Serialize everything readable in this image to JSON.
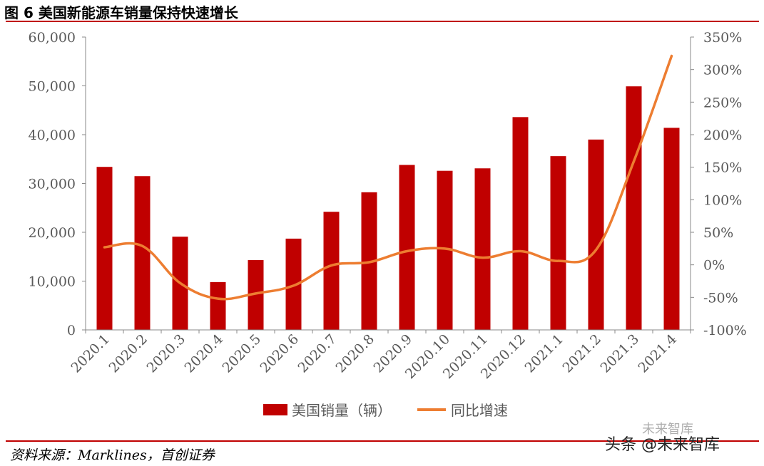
{
  "figure": {
    "title": "图 6 美国新能源车销量保持快速增长",
    "source": "资料来源：Marklines，首创证券",
    "watermark": "头条 @未来智库",
    "watermark_faint": "未来智库"
  },
  "colors": {
    "bar": "#c00000",
    "line": "#ed7d31",
    "rule": "#c00000",
    "axis": "#888888",
    "text": "#595959"
  },
  "chart_data": {
    "type": "bar",
    "categories": [
      "2020.1",
      "2020.2",
      "2020.3",
      "2020.4",
      "2020.5",
      "2020.6",
      "2020.7",
      "2020.8",
      "2020.9",
      "2020.10",
      "2020.11",
      "2020.12",
      "2021.1",
      "2021.2",
      "2021.3",
      "2021.4"
    ],
    "series": [
      {
        "name": "美国销量（辆）",
        "type": "bar",
        "axis": "left",
        "values": [
          33400,
          31500,
          19100,
          9800,
          14300,
          18700,
          24200,
          28200,
          33800,
          32600,
          33100,
          43600,
          35600,
          39000,
          49900,
          41400
        ]
      },
      {
        "name": "同比增速",
        "type": "line",
        "axis": "right",
        "values": [
          0.27,
          0.29,
          -0.28,
          -0.52,
          -0.44,
          -0.32,
          -0.01,
          0.04,
          0.21,
          0.25,
          0.11,
          0.21,
          0.06,
          0.23,
          1.59,
          3.21
        ]
      }
    ],
    "yleft": {
      "ylim": [
        0,
        60000
      ],
      "ticks": [
        0,
        10000,
        20000,
        30000,
        40000,
        50000,
        60000
      ],
      "tick_labels": [
        "0",
        "10,000",
        "20,000",
        "30,000",
        "40,000",
        "50,000",
        "60,000"
      ]
    },
    "yright": {
      "ylim": [
        -1.0,
        3.5
      ],
      "ticks": [
        -1.0,
        -0.5,
        0,
        0.5,
        1.0,
        1.5,
        2.0,
        2.5,
        3.0,
        3.5
      ],
      "tick_labels": [
        "-100%",
        "-50%",
        "0%",
        "50%",
        "100%",
        "150%",
        "200%",
        "250%",
        "300%",
        "350%"
      ]
    },
    "legend": {
      "position": "bottom",
      "items": [
        {
          "label": "美国销量（辆）",
          "kind": "bar"
        },
        {
          "label": "同比增速",
          "kind": "line"
        }
      ]
    },
    "grid": false
  }
}
